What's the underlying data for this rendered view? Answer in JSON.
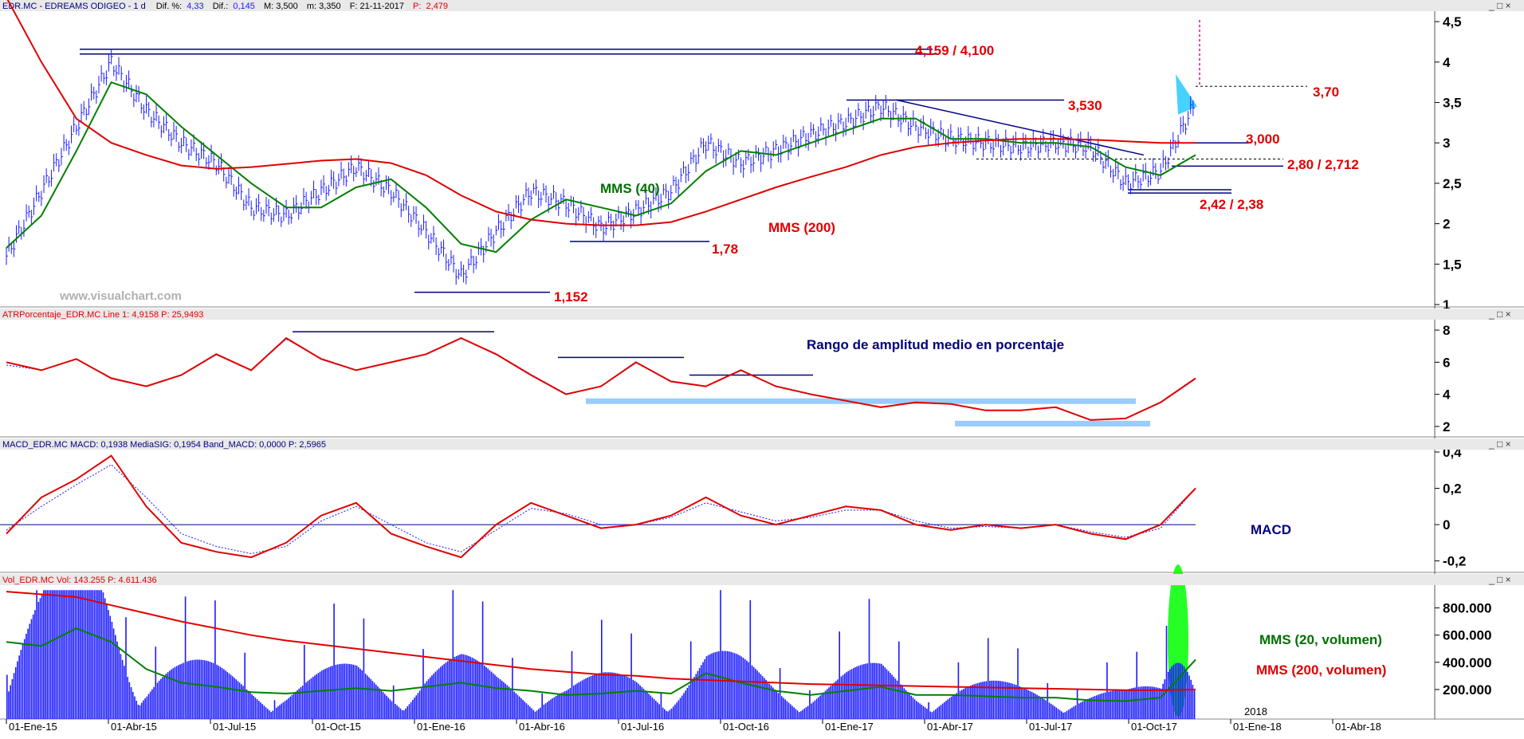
{
  "colors": {
    "price": "#1a1aff",
    "mms40": "#008000",
    "mms200": "#e00000",
    "atr": "#e00000",
    "macd": "#e00000",
    "signal": "#1a1aff",
    "volume": "#1a1aff",
    "vol_mms20": "#008000",
    "vol_mms200": "#e00000",
    "navy": "#000080",
    "band": "#99ccff",
    "spike": "#00ff00",
    "header_bg": "#e9e9e9"
  },
  "window_buttons": "_ □ ×",
  "panels": {
    "price": {
      "header": {
        "name": "EDR.MC - EDREAMS ODIGEO - 1 d",
        "dif_pct_label": "Dif. %:",
        "dif_pct": "4,33",
        "dif_label": "Dif.:",
        "dif": "0,145",
        "max": "M: 3,500",
        "min": "m: 3,350",
        "date": "F: 21-11-2017",
        "p_label": "P:",
        "p": "2,479"
      },
      "watermark": "www.visualchart.com",
      "annotations": {
        "level_4159": "4,159 / 4,100",
        "level_3530": "3,530",
        "level_370": "3,70",
        "level_3000": "3,000",
        "level_280": "2,80 / 2,712",
        "level_242": "2,42 / 2,38",
        "level_178": "1,78",
        "level_1152": "1,152",
        "mms40": "MMS (40)",
        "mms200": "MMS (200)"
      },
      "yticks": [
        "4,5",
        "4",
        "3,5",
        "3",
        "2,5",
        "2",
        "1,5",
        "1"
      ]
    },
    "atr": {
      "header": "ATRPorcentaje_EDR.MC  Line 1: 4,9158   P: 25,9493",
      "annotation": "Rango de amplitud medio en porcentaje",
      "yticks": [
        "8",
        "6",
        "4",
        "2"
      ]
    },
    "macd": {
      "header": "MACD_EDR.MC  MACD: 0,1938  MediaSIG: 0,1954  Band_MACD: 0,0000   P: 2,5965",
      "annotation": "MACD",
      "yticks": [
        "0,4",
        "0,2",
        "0",
        "-0,2"
      ]
    },
    "volume": {
      "header": "Vol_EDR.MC  Vol: 143.255   P: 4.611.436",
      "annotation_mms20": "MMS (20, volumen)",
      "annotation_mms200": "MMS (200, volumen)",
      "yticks": [
        "800.000",
        "600.000",
        "400.000",
        "200.000"
      ],
      "year_label": "2018"
    }
  },
  "x_axis": {
    "labels": [
      "01-Ene-15",
      "01-Abr-15",
      "01-Jul-15",
      "01-Oct-15",
      "01-Ene-16",
      "01-Abr-16",
      "01-Jul-16",
      "01-Oct-16",
      "01-Ene-17",
      "01-Abr-17",
      "01-Jul-17",
      "01-Oct-17",
      "01-Ene-18",
      "01-Abr-18"
    ]
  },
  "chart_data": [
    {
      "type": "line",
      "title": "EDR.MC - EDREAMS ODIGEO - 1 d",
      "x": [
        "2015-01",
        "2015-02",
        "2015-03",
        "2015-04",
        "2015-05",
        "2015-06",
        "2015-07",
        "2015-08",
        "2015-09",
        "2015-10",
        "2015-11",
        "2015-12",
        "2016-01",
        "2016-02",
        "2016-03",
        "2016-04",
        "2016-05",
        "2016-06",
        "2016-07",
        "2016-08",
        "2016-09",
        "2016-10",
        "2016-11",
        "2016-12",
        "2017-01",
        "2017-02",
        "2017-03",
        "2017-04",
        "2017-05",
        "2017-06",
        "2017-07",
        "2017-08",
        "2017-09",
        "2017-10",
        "2017-11"
      ],
      "series": [
        {
          "name": "Price",
          "values": [
            1.6,
            2.4,
            3.2,
            4.0,
            3.4,
            3.0,
            2.75,
            2.2,
            2.1,
            2.4,
            2.7,
            2.4,
            1.9,
            1.35,
            1.9,
            2.4,
            2.25,
            1.95,
            2.15,
            2.4,
            3.0,
            2.75,
            2.9,
            3.1,
            3.25,
            3.45,
            3.2,
            3.05,
            3.0,
            2.95,
            3.0,
            2.95,
            2.5,
            2.65,
            3.5
          ]
        },
        {
          "name": "MMS (40)",
          "values": [
            1.7,
            2.1,
            2.9,
            3.75,
            3.6,
            3.2,
            2.85,
            2.5,
            2.2,
            2.2,
            2.45,
            2.55,
            2.2,
            1.75,
            1.65,
            2.05,
            2.3,
            2.2,
            2.1,
            2.25,
            2.65,
            2.9,
            2.85,
            3.0,
            3.15,
            3.3,
            3.3,
            3.05,
            3.05,
            3.0,
            3.0,
            2.95,
            2.7,
            2.6,
            2.85
          ]
        },
        {
          "name": "MMS (200)",
          "values": [
            4.8,
            4.0,
            3.3,
            3.0,
            2.85,
            2.72,
            2.68,
            2.7,
            2.74,
            2.78,
            2.8,
            2.75,
            2.6,
            2.35,
            2.15,
            2.05,
            2.0,
            1.98,
            1.98,
            2.02,
            2.15,
            2.3,
            2.45,
            2.58,
            2.7,
            2.85,
            2.95,
            3.0,
            3.03,
            3.05,
            3.05,
            3.04,
            3.02,
            3.0,
            3.0
          ]
        }
      ],
      "ylim": [
        1,
        4.6
      ]
    },
    {
      "type": "line",
      "x": [
        "2015-01",
        "2015-02",
        "2015-03",
        "2015-04",
        "2015-05",
        "2015-06",
        "2015-07",
        "2015-08",
        "2015-09",
        "2015-10",
        "2015-11",
        "2015-12",
        "2016-01",
        "2016-02",
        "2016-03",
        "2016-04",
        "2016-05",
        "2016-06",
        "2016-07",
        "2016-08",
        "2016-09",
        "2016-10",
        "2016-11",
        "2016-12",
        "2017-01",
        "2017-02",
        "2017-03",
        "2017-04",
        "2017-05",
        "2017-06",
        "2017-07",
        "2017-08",
        "2017-09",
        "2017-10",
        "2017-11"
      ],
      "series": [
        {
          "name": "ATRPorcentaje_EDR.MC",
          "values": [
            6.0,
            5.5,
            6.2,
            5.0,
            4.5,
            5.2,
            6.5,
            5.5,
            7.5,
            6.2,
            5.5,
            6.0,
            6.5,
            7.5,
            6.5,
            5.2,
            4.0,
            4.5,
            6.0,
            4.8,
            4.5,
            5.5,
            4.5,
            4.0,
            3.6,
            3.2,
            3.5,
            3.4,
            3.0,
            3.0,
            3.2,
            2.4,
            2.5,
            3.5,
            5.0
          ]
        }
      ],
      "ylim": [
        1.5,
        8.5
      ]
    },
    {
      "type": "line",
      "x": [
        "2015-01",
        "2015-02",
        "2015-03",
        "2015-04",
        "2015-05",
        "2015-06",
        "2015-07",
        "2015-08",
        "2015-09",
        "2015-10",
        "2015-11",
        "2015-12",
        "2016-01",
        "2016-02",
        "2016-03",
        "2016-04",
        "2016-05",
        "2016-06",
        "2016-07",
        "2016-08",
        "2016-09",
        "2016-10",
        "2016-11",
        "2016-12",
        "2017-01",
        "2017-02",
        "2017-03",
        "2017-04",
        "2017-05",
        "2017-06",
        "2017-07",
        "2017-08",
        "2017-09",
        "2017-10",
        "2017-11"
      ],
      "series": [
        {
          "name": "MACD",
          "values": [
            -0.05,
            0.15,
            0.25,
            0.38,
            0.1,
            -0.1,
            -0.15,
            -0.18,
            -0.1,
            0.05,
            0.12,
            -0.05,
            -0.12,
            -0.18,
            0.0,
            0.12,
            0.05,
            -0.02,
            0.0,
            0.05,
            0.15,
            0.05,
            0.0,
            0.05,
            0.1,
            0.08,
            0.0,
            -0.03,
            0.0,
            -0.02,
            0.0,
            -0.05,
            -0.08,
            0.0,
            0.2
          ]
        },
        {
          "name": "MediaSIG",
          "values": [
            -0.03,
            0.1,
            0.22,
            0.33,
            0.15,
            -0.05,
            -0.12,
            -0.16,
            -0.12,
            0.02,
            0.1,
            0.0,
            -0.1,
            -0.15,
            -0.03,
            0.09,
            0.06,
            0.0,
            0.0,
            0.04,
            0.12,
            0.07,
            0.02,
            0.04,
            0.08,
            0.08,
            0.02,
            -0.02,
            -0.01,
            -0.02,
            0.0,
            -0.04,
            -0.07,
            -0.02,
            0.2
          ]
        }
      ],
      "ylim": [
        -0.25,
        0.4
      ]
    },
    {
      "type": "bar",
      "x": [
        "2015-01",
        "2015-02",
        "2015-03",
        "2015-04",
        "2015-05",
        "2015-06",
        "2015-07",
        "2015-08",
        "2015-09",
        "2015-10",
        "2015-11",
        "2015-12",
        "2016-01",
        "2016-02",
        "2016-03",
        "2016-04",
        "2016-05",
        "2016-06",
        "2016-07",
        "2016-08",
        "2016-09",
        "2016-10",
        "2016-11",
        "2016-12",
        "2017-01",
        "2017-02",
        "2017-03",
        "2017-04",
        "2017-05",
        "2017-06",
        "2017-07",
        "2017-08",
        "2017-09",
        "2017-10",
        "2017-11"
      ],
      "series": [
        {
          "name": "Vol",
          "values": [
            700000,
            650000,
            800000,
            600000,
            300000,
            250000,
            220000,
            180000,
            160000,
            200000,
            230000,
            180000,
            250000,
            260000,
            200000,
            180000,
            150000,
            180000,
            200000,
            170000,
            300000,
            250000,
            180000,
            150000,
            200000,
            230000,
            150000,
            160000,
            150000,
            140000,
            140000,
            120000,
            110000,
            150000,
            800000
          ]
        },
        {
          "name": "MMS (20, volumen)",
          "values": [
            550000,
            520000,
            650000,
            550000,
            350000,
            250000,
            220000,
            180000,
            170000,
            190000,
            210000,
            190000,
            220000,
            250000,
            210000,
            190000,
            160000,
            170000,
            190000,
            170000,
            320000,
            250000,
            190000,
            160000,
            190000,
            220000,
            160000,
            160000,
            150000,
            140000,
            140000,
            120000,
            115000,
            140000,
            420000
          ]
        },
        {
          "name": "MMS (200, volumen)",
          "values": [
            920000,
            900000,
            880000,
            820000,
            760000,
            700000,
            650000,
            600000,
            560000,
            530000,
            500000,
            470000,
            440000,
            410000,
            380000,
            350000,
            330000,
            310000,
            300000,
            280000,
            270000,
            260000,
            250000,
            240000,
            235000,
            230000,
            225000,
            220000,
            215000,
            210000,
            205000,
            200000,
            195000,
            195000,
            200000
          ]
        }
      ],
      "ylim": [
        0,
        950000
      ]
    }
  ]
}
